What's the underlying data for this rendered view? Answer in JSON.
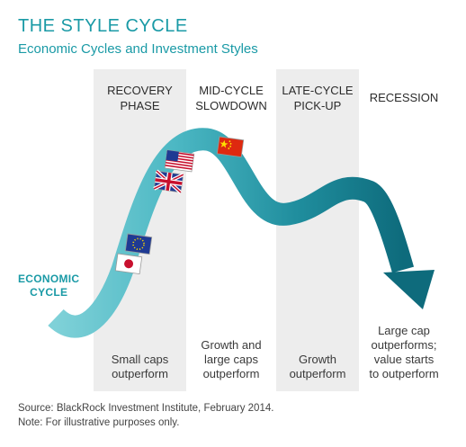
{
  "title": "THE STYLE CYCLE",
  "subtitle": "Economic Cycles and Investment Styles",
  "phases": [
    {
      "line1": "RECOVERY",
      "line2": "PHASE"
    },
    {
      "line1": "MID-CYCLE",
      "line2": "SLOWDOWN"
    },
    {
      "line1": "LATE-CYCLE",
      "line2": "PICK-UP"
    },
    {
      "line1": "RECESSION",
      "line2": ""
    }
  ],
  "outcomes": [
    {
      "lines": [
        "Small caps",
        "outperform"
      ]
    },
    {
      "lines": [
        "Growth and",
        "large caps",
        "outperform"
      ]
    },
    {
      "lines": [
        "Growth",
        "outperform"
      ]
    },
    {
      "lines": [
        "Large cap",
        "outperforms;",
        "value starts",
        "to outperform"
      ]
    }
  ],
  "cycle_label": {
    "line1": "ECONOMIC",
    "line2": "CYCLE"
  },
  "flags": [
    "japan-flag",
    "eu-flag",
    "uk-flag",
    "us-flag",
    "china-flag"
  ],
  "colors": {
    "accent": "#1a9aa6",
    "band": "#ededed"
  },
  "footer": {
    "source": "Source: BlackRock Investment Institute, February 2014.",
    "note": "Note: For illustrative purposes only."
  }
}
